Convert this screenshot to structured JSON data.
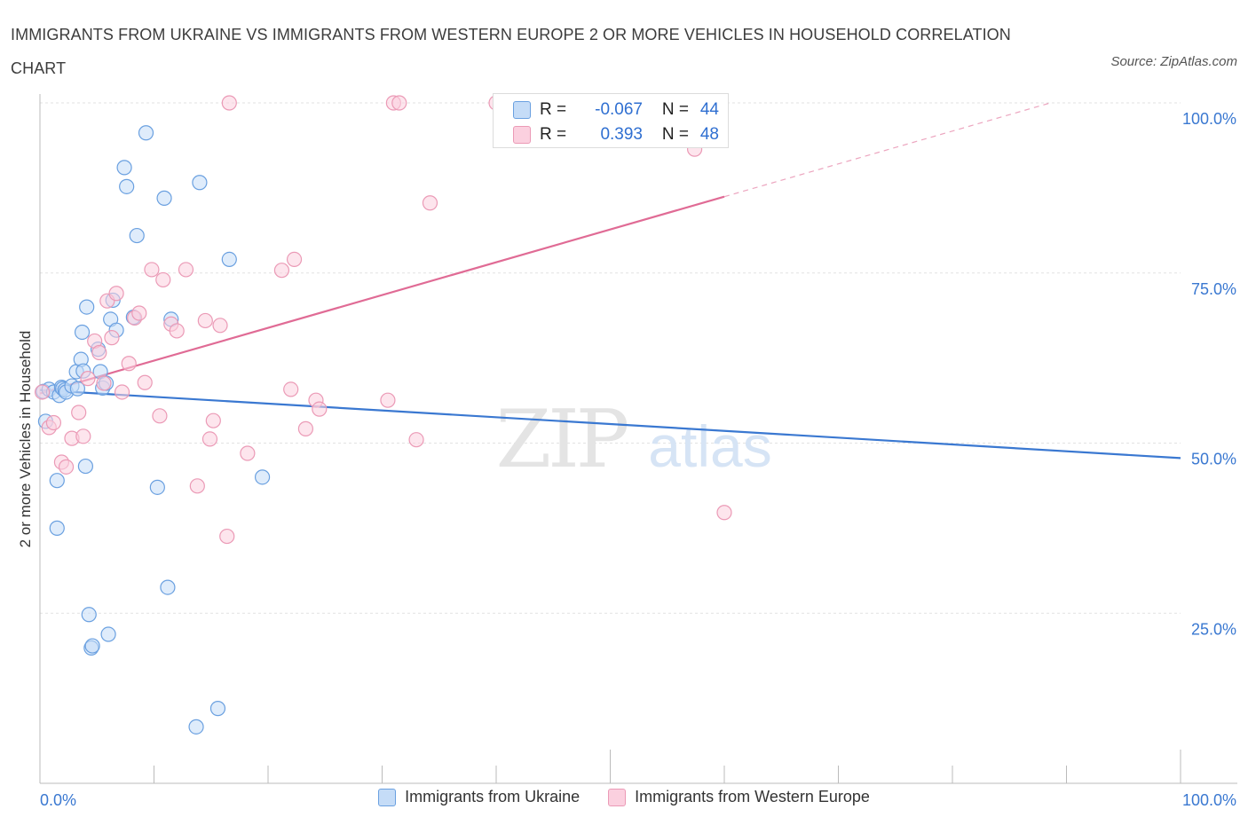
{
  "title": "IMMIGRANTS FROM UKRAINE VS IMMIGRANTS FROM WESTERN EUROPE 2 OR MORE VEHICLES IN HOUSEHOLD CORRELATION CHART",
  "source": "Source: ZipAtlas.com",
  "watermark": {
    "zip": "ZIP",
    "atlas": "atlas"
  },
  "colors": {
    "blue": "#3a78d1",
    "blue_fill": "#c5dcf7",
    "pink": "#e06b95",
    "pink_fill": "#fbd0df",
    "tick_text": "#3a78d1"
  },
  "stats": {
    "rows": [
      {
        "r_label": "R =",
        "r_value": "-0.067",
        "n_label": "N =",
        "n_value": "44"
      },
      {
        "r_label": "R =",
        "r_value": "0.393",
        "n_label": "N =",
        "n_value": "48"
      }
    ]
  },
  "chart_data": {
    "type": "scatter",
    "title": "IMMIGRANTS FROM UKRAINE VS IMMIGRANTS FROM WESTERN EUROPE 2 OR MORE VEHICLES IN HOUSEHOLD CORRELATION CHART",
    "xlabel": "",
    "ylabel": "2 or more Vehicles in Household",
    "xlim": [
      0,
      100
    ],
    "ylim": [
      0,
      100
    ],
    "x_tick_labels": [
      "0.0%",
      "100.0%"
    ],
    "y_ticks": [
      25,
      50,
      75,
      100
    ],
    "y_tick_labels": [
      "25.0%",
      "50.0%",
      "75.0%",
      "100.0%"
    ],
    "legend": [
      "Immigrants from Ukraine",
      "Immigrants from Western Europe"
    ],
    "series": [
      {
        "name": "Immigrants from Ukraine",
        "r": -0.067,
        "n": 44,
        "trend": {
          "x0": 0,
          "y0": 57.8,
          "x1": 100,
          "y1": 47.8,
          "solid_until": 100
        },
        "points": [
          [
            0.3,
            57.6
          ],
          [
            0.5,
            53.2
          ],
          [
            0.8,
            57.9
          ],
          [
            1.2,
            57.5
          ],
          [
            1.5,
            37.5
          ],
          [
            1.5,
            44.5
          ],
          [
            1.7,
            57.0
          ],
          [
            1.9,
            58.2
          ],
          [
            2.0,
            58.0
          ],
          [
            2.2,
            57.8
          ],
          [
            2.3,
            57.5
          ],
          [
            2.8,
            58.4
          ],
          [
            3.2,
            60.5
          ],
          [
            3.3,
            58.0
          ],
          [
            3.6,
            62.3
          ],
          [
            3.7,
            66.3
          ],
          [
            3.8,
            60.6
          ],
          [
            4.0,
            46.6
          ],
          [
            4.1,
            70.0
          ],
          [
            4.3,
            24.8
          ],
          [
            4.5,
            19.9
          ],
          [
            4.6,
            20.2
          ],
          [
            5.1,
            63.8
          ],
          [
            5.3,
            60.5
          ],
          [
            5.5,
            58.1
          ],
          [
            5.8,
            58.8
          ],
          [
            6.0,
            21.9
          ],
          [
            6.2,
            68.2
          ],
          [
            6.4,
            71.0
          ],
          [
            6.7,
            66.6
          ],
          [
            7.4,
            90.5
          ],
          [
            7.6,
            87.7
          ],
          [
            8.2,
            68.5
          ],
          [
            8.5,
            80.5
          ],
          [
            9.3,
            95.6
          ],
          [
            10.3,
            43.5
          ],
          [
            10.9,
            86.0
          ],
          [
            11.2,
            28.8
          ],
          [
            11.5,
            68.2
          ],
          [
            13.7,
            8.3
          ],
          [
            14.0,
            88.3
          ],
          [
            15.6,
            11.0
          ],
          [
            16.6,
            77.0
          ],
          [
            19.5,
            45.0
          ]
        ]
      },
      {
        "name": "Immigrants from Western Europe",
        "r": 0.393,
        "n": 48,
        "trend": {
          "x0": 0,
          "y0": 57.3,
          "x1": 100,
          "y1": 105.5,
          "solid_until": 60
        },
        "points": [
          [
            0.2,
            57.5
          ],
          [
            0.8,
            52.3
          ],
          [
            1.2,
            53.0
          ],
          [
            1.9,
            47.2
          ],
          [
            2.3,
            46.5
          ],
          [
            2.8,
            50.7
          ],
          [
            3.4,
            54.5
          ],
          [
            3.8,
            51.0
          ],
          [
            4.2,
            59.5
          ],
          [
            4.8,
            65.0
          ],
          [
            5.2,
            63.3
          ],
          [
            5.6,
            58.8
          ],
          [
            5.9,
            70.9
          ],
          [
            6.3,
            65.5
          ],
          [
            6.7,
            72.0
          ],
          [
            7.2,
            57.5
          ],
          [
            7.8,
            61.7
          ],
          [
            8.3,
            68.4
          ],
          [
            8.7,
            69.1
          ],
          [
            9.2,
            58.9
          ],
          [
            9.8,
            75.5
          ],
          [
            10.5,
            54.0
          ],
          [
            10.8,
            74.0
          ],
          [
            11.5,
            67.5
          ],
          [
            12.0,
            66.5
          ],
          [
            12.8,
            75.5
          ],
          [
            13.8,
            43.7
          ],
          [
            14.5,
            68.0
          ],
          [
            14.9,
            50.6
          ],
          [
            15.2,
            53.3
          ],
          [
            15.8,
            67.3
          ],
          [
            16.4,
            36.3
          ],
          [
            16.6,
            100.0
          ],
          [
            18.2,
            48.5
          ],
          [
            21.2,
            75.4
          ],
          [
            22.0,
            57.9
          ],
          [
            22.3,
            77.0
          ],
          [
            23.3,
            52.1
          ],
          [
            24.2,
            56.3
          ],
          [
            24.5,
            55.0
          ],
          [
            30.5,
            56.3
          ],
          [
            31.0,
            100.0
          ],
          [
            31.5,
            100.0
          ],
          [
            33.0,
            50.5
          ],
          [
            34.2,
            85.3
          ],
          [
            40.0,
            100.0
          ],
          [
            57.4,
            93.2
          ],
          [
            60.0,
            39.8
          ]
        ]
      }
    ]
  }
}
